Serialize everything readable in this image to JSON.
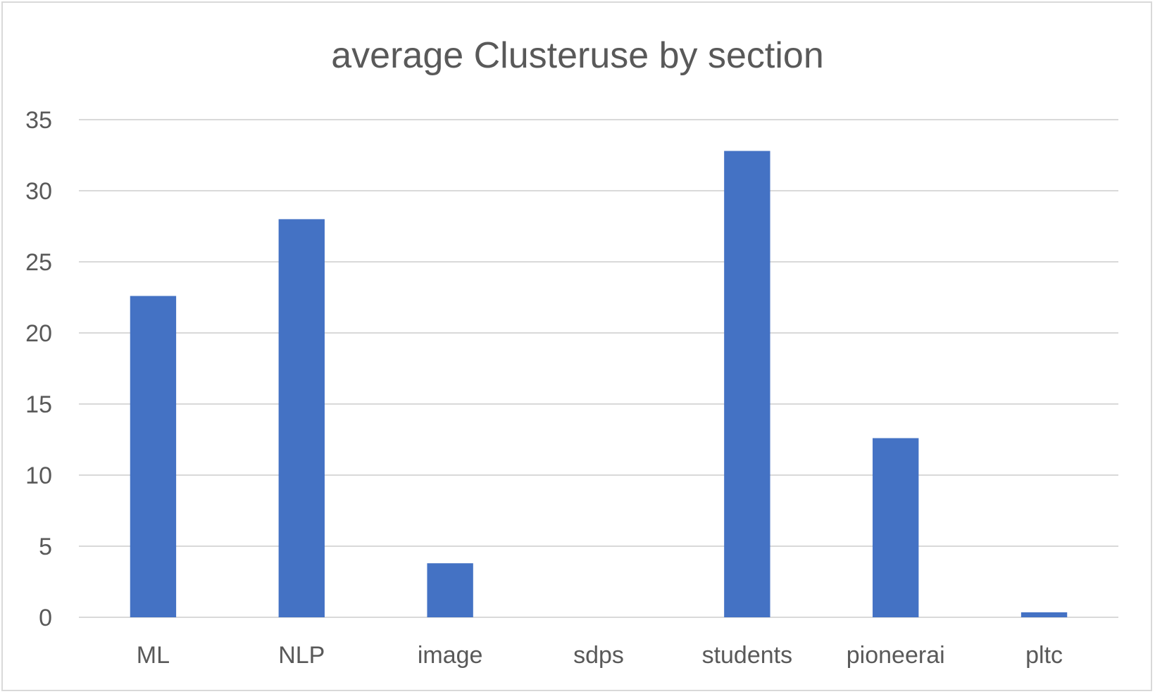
{
  "chart_data": {
    "type": "bar",
    "title": "average Clusteruse by section",
    "xlabel": "",
    "ylabel": "",
    "categories": [
      "ML",
      "NLP",
      "image",
      "sdps",
      "students",
      "pioneerai",
      "pltc"
    ],
    "values": [
      22.6,
      28.0,
      3.8,
      0,
      32.8,
      12.6,
      0.35
    ],
    "ylim": [
      0,
      35
    ],
    "yticks": [
      0,
      5,
      10,
      15,
      20,
      25,
      30,
      35
    ],
    "grid": true,
    "legend": "none",
    "bar_color": "#4472c4",
    "grid_color": "#d9d9d9"
  }
}
